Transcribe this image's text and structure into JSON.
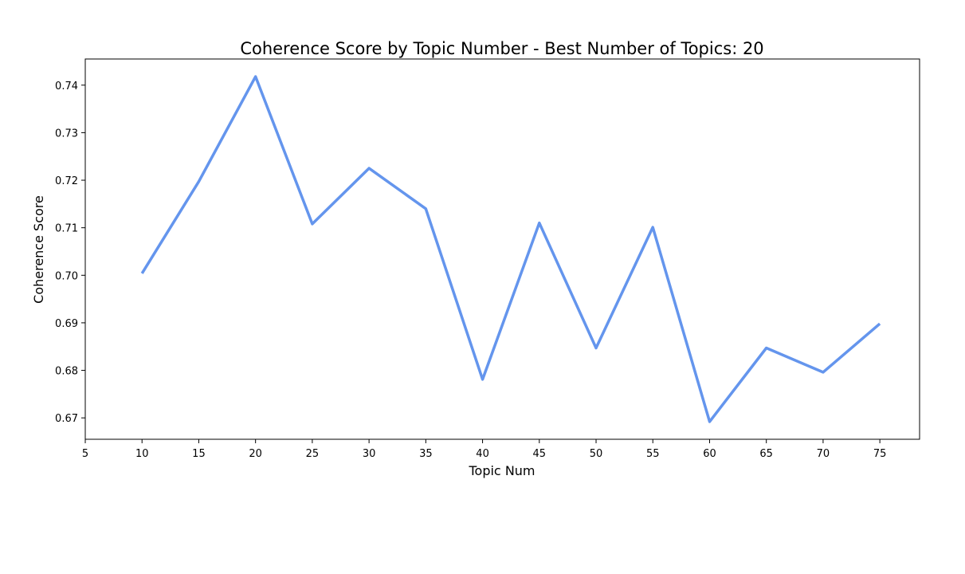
{
  "chart_data": {
    "type": "line",
    "title": "Coherence Score by Topic Number - Best Number of Topics: 20",
    "xlabel": "Topic Num",
    "ylabel": "Coherence Score",
    "xlim": [
      5,
      78.5
    ],
    "ylim": [
      0.6655,
      0.7455
    ],
    "xticks": [
      5,
      10,
      15,
      20,
      25,
      30,
      35,
      40,
      45,
      50,
      55,
      60,
      65,
      70,
      75
    ],
    "yticks": [
      0.67,
      0.68,
      0.69,
      0.7,
      0.71,
      0.72,
      0.73,
      0.74
    ],
    "ytick_labels": [
      "0.67",
      "0.68",
      "0.69",
      "0.70",
      "0.71",
      "0.72",
      "0.73",
      "0.74"
    ],
    "grid": false,
    "series": [
      {
        "color": "#6495ed",
        "x": [
          10,
          15,
          20,
          25,
          30,
          35,
          40,
          45,
          50,
          55,
          60,
          65,
          70,
          75
        ],
        "y": [
          0.7004,
          0.7197,
          0.7418,
          0.7108,
          0.7225,
          0.714,
          0.6781,
          0.711,
          0.6847,
          0.7101,
          0.6692,
          0.6847,
          0.6796,
          0.6898
        ]
      }
    ]
  }
}
